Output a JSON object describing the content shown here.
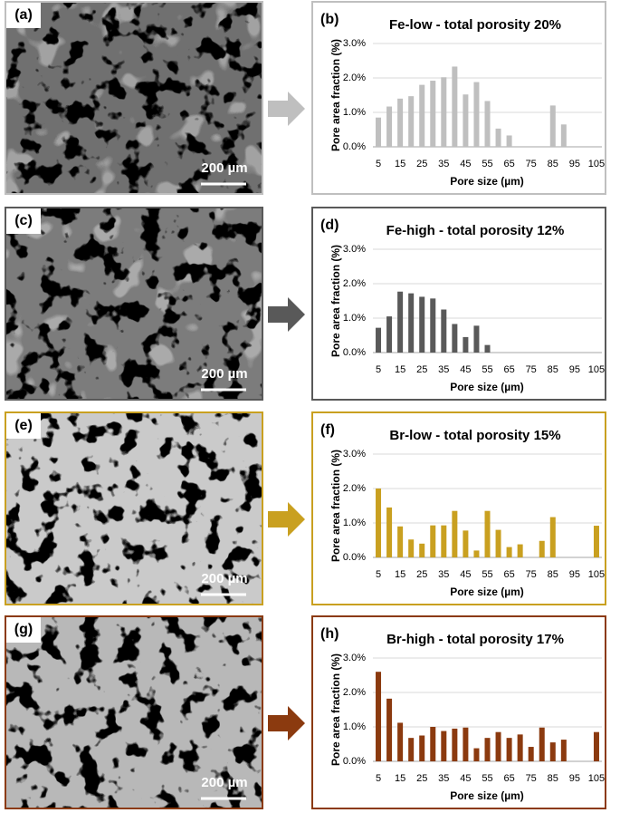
{
  "images": [
    {
      "label": "(a)",
      "scale_bar": "200 µm"
    },
    {
      "label": "(c)",
      "scale_bar": "200 µm"
    },
    {
      "label": "(e)",
      "scale_bar": "200 µm"
    },
    {
      "label": "(g)",
      "scale_bar": "200 µm"
    }
  ],
  "chart_data": [
    {
      "type": "bar",
      "panel": "(b)",
      "title": "Fe-low - total porosity 20%",
      "xlabel": "Pore size (µm)",
      "ylabel": "Pore area fraction (%)",
      "color": "#bfbfbf",
      "categories": [
        "5",
        null,
        "15",
        null,
        "25",
        null,
        "35",
        null,
        "45",
        null,
        "55",
        null,
        "65",
        null,
        "75",
        null,
        "85",
        null,
        "95",
        null,
        "105"
      ],
      "values": [
        0.85,
        1.17,
        1.4,
        1.47,
        1.8,
        1.92,
        2.02,
        2.33,
        1.52,
        1.88,
        1.33,
        0.53,
        0.33,
        0,
        0,
        0,
        1.2,
        0.65,
        0,
        0,
        0
      ],
      "ylim": [
        0,
        3
      ],
      "yticks": [
        {
          "value": 0,
          "label": "0.0%"
        },
        {
          "value": 1,
          "label": "1.0%"
        },
        {
          "value": 2,
          "label": "2.0%"
        },
        {
          "value": 3,
          "label": "3.0%"
        }
      ],
      "grid": true
    },
    {
      "type": "bar",
      "panel": "(d)",
      "title": "Fe-high - total porosity 12%",
      "xlabel": "Pore size (µm)",
      "ylabel": "Pore area fraction (%)",
      "color": "#595959",
      "categories": [
        "5",
        null,
        "15",
        null,
        "25",
        null,
        "35",
        null,
        "45",
        null,
        "55",
        null,
        "65",
        null,
        "75",
        null,
        "85",
        null,
        "95",
        null,
        "105"
      ],
      "values": [
        0.72,
        1.05,
        1.77,
        1.72,
        1.62,
        1.57,
        1.25,
        0.83,
        0.45,
        0.78,
        0.22,
        0,
        0,
        0,
        0,
        0,
        0,
        0,
        0,
        0,
        0
      ],
      "ylim": [
        0,
        3
      ],
      "yticks": [
        {
          "value": 0,
          "label": "0.0%"
        },
        {
          "value": 1,
          "label": "1.0%"
        },
        {
          "value": 2,
          "label": "2.0%"
        },
        {
          "value": 3,
          "label": "3.0%"
        }
      ],
      "grid": true
    },
    {
      "type": "bar",
      "panel": "(f)",
      "title": "Br-low - total porosity 15%",
      "xlabel": "Pore size (µm)",
      "ylabel": "Pore area fraction (%)",
      "color": "#c9a020",
      "categories": [
        "5",
        null,
        "15",
        null,
        "25",
        null,
        "35",
        null,
        "45",
        null,
        "55",
        null,
        "65",
        null,
        "75",
        null,
        "85",
        null,
        "95",
        null,
        "105"
      ],
      "values": [
        2.0,
        1.45,
        0.9,
        0.52,
        0.4,
        0.93,
        0.93,
        1.35,
        0.78,
        0.2,
        1.35,
        0.8,
        0.3,
        0.38,
        0,
        0.48,
        1.17,
        0,
        0,
        0,
        0.92
      ],
      "ylim": [
        0,
        3
      ],
      "yticks": [
        {
          "value": 0,
          "label": "0.0%"
        },
        {
          "value": 1,
          "label": "1.0%"
        },
        {
          "value": 2,
          "label": "2.0%"
        },
        {
          "value": 3,
          "label": "3.0%"
        }
      ],
      "grid": true
    },
    {
      "type": "bar",
      "panel": "(h)",
      "title": "Br-high - total porosity 17%",
      "xlabel": "Pore size (µm)",
      "ylabel": "Pore area fraction (%)",
      "color": "#8b3a0f",
      "categories": [
        "5",
        null,
        "15",
        null,
        "25",
        null,
        "35",
        null,
        "45",
        null,
        "55",
        null,
        "65",
        null,
        "75",
        null,
        "85",
        null,
        "95",
        null,
        "105"
      ],
      "values": [
        2.6,
        1.82,
        1.12,
        0.68,
        0.75,
        1.0,
        0.88,
        0.95,
        0.98,
        0.38,
        0.68,
        0.85,
        0.68,
        0.78,
        0.42,
        0.98,
        0.55,
        0.63,
        0,
        0,
        0.85
      ],
      "ylim": [
        0,
        3
      ],
      "yticks": [
        {
          "value": 0,
          "label": "0.0%"
        },
        {
          "value": 1,
          "label": "1.0%"
        },
        {
          "value": 2,
          "label": "2.0%"
        },
        {
          "value": 3,
          "label": "3.0%"
        }
      ],
      "grid": true
    }
  ]
}
